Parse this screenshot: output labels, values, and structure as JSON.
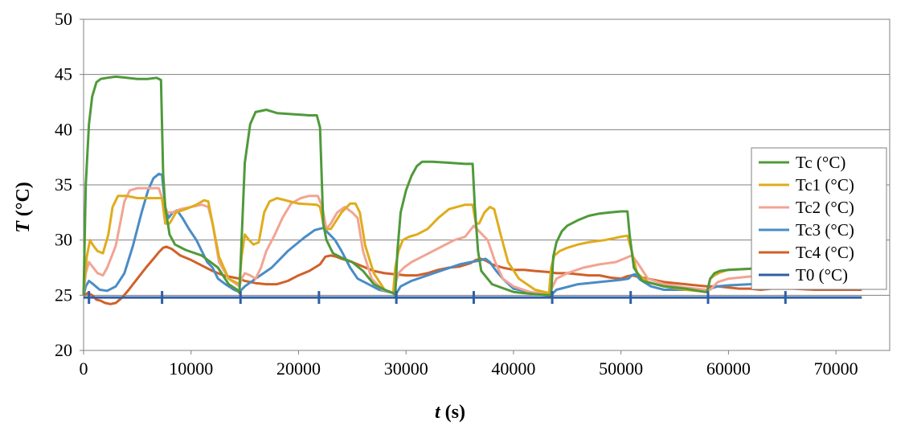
{
  "chart_data": {
    "type": "line",
    "title": "",
    "xlabel": {
      "var": "t",
      "unit": " (s)"
    },
    "ylabel": {
      "var": "T",
      "unit": " (°C)"
    },
    "xlim": [
      0,
      75000
    ],
    "ylim": [
      20,
      50
    ],
    "xticks": [
      0,
      10000,
      20000,
      30000,
      40000,
      50000,
      60000,
      70000
    ],
    "yticks": [
      20,
      25,
      30,
      35,
      40,
      45,
      50
    ],
    "grid": "horizontal",
    "legend_position": "right",
    "series": [
      {
        "name": "Tc (°C)",
        "color": "#4f9a3a",
        "x": [
          0,
          200,
          500,
          800,
          1200,
          1600,
          2200,
          3000,
          4000,
          5000,
          6000,
          6800,
          7200,
          7400,
          7600,
          8000,
          8500,
          9500,
          11000,
          12500,
          13500,
          14300,
          14500,
          14700,
          15000,
          15500,
          16000,
          17000,
          18000,
          19500,
          21000,
          21700,
          22000,
          22300,
          22600,
          23200,
          24000,
          25000,
          26000,
          27000,
          28000,
          28800,
          29000,
          29200,
          29500,
          30000,
          30500,
          31000,
          31500,
          32500,
          34000,
          35500,
          36200,
          36400,
          36700,
          37000,
          38000,
          40000,
          42000,
          43300,
          43500,
          43700,
          44000,
          44500,
          45000,
          46000,
          47000,
          48000,
          49000,
          50000,
          50600,
          50800,
          51200,
          52000,
          54000,
          56000,
          57800,
          58000,
          58300,
          58700,
          59200,
          60000,
          62000,
          64000,
          65200,
          65700,
          66500,
          68000,
          70000,
          72400
        ],
        "y": [
          25.0,
          35.0,
          40.5,
          43.0,
          44.3,
          44.6,
          44.7,
          44.8,
          44.7,
          44.6,
          44.6,
          44.7,
          44.5,
          36.0,
          33.0,
          30.5,
          29.6,
          29.1,
          28.6,
          27.5,
          26.0,
          25.5,
          25.2,
          30.0,
          37.0,
          40.5,
          41.6,
          41.8,
          41.5,
          41.4,
          41.3,
          41.3,
          40.2,
          31.5,
          30.0,
          28.8,
          28.4,
          28.0,
          27.2,
          26.0,
          25.5,
          25.2,
          25.0,
          29.0,
          32.5,
          34.5,
          35.8,
          36.7,
          37.1,
          37.1,
          37.0,
          36.9,
          36.9,
          33.0,
          29.0,
          27.2,
          26.0,
          25.3,
          25.1,
          25.0,
          25.0,
          28.5,
          29.8,
          30.8,
          31.3,
          31.8,
          32.2,
          32.4,
          32.5,
          32.6,
          32.6,
          30.5,
          27.5,
          26.3,
          25.8,
          25.6,
          25.3,
          25.3,
          26.5,
          27.0,
          27.2,
          27.3,
          27.4,
          27.4,
          27.4,
          26.2,
          26.0,
          25.9,
          25.8,
          25.7
        ]
      },
      {
        "name": "Tc1 (°C)",
        "color": "#e0ac1c",
        "x": [
          0,
          300,
          600,
          900,
          1300,
          1800,
          2300,
          2700,
          3200,
          4000,
          5000,
          6500,
          7300,
          7600,
          8000,
          8600,
          9500,
          10500,
          11200,
          11600,
          12000,
          12600,
          13500,
          14500,
          14700,
          15000,
          15400,
          15800,
          16300,
          16800,
          17300,
          18000,
          20000,
          21700,
          22000,
          22400,
          23000,
          24000,
          24800,
          25300,
          25700,
          26200,
          27000,
          28000,
          28800,
          29000,
          29300,
          29700,
          30300,
          31000,
          32000,
          33000,
          34000,
          35500,
          36200,
          36500,
          36800,
          37300,
          37800,
          38200,
          38800,
          39500,
          40500,
          42000,
          43300,
          43500,
          43800,
          44300,
          45000,
          46000,
          47000,
          48500,
          50000,
          50600,
          51000,
          51500,
          52500,
          54000,
          56000,
          58000,
          58300,
          58700,
          59300,
          60000,
          62000,
          64000,
          65200,
          65800,
          66500,
          68000,
          70000,
          72400
        ],
        "y": [
          25.5,
          28.5,
          30.0,
          29.5,
          29.0,
          28.8,
          30.5,
          33.0,
          34.0,
          34.0,
          33.8,
          33.8,
          33.8,
          31.5,
          31.5,
          32.5,
          32.8,
          33.2,
          33.6,
          33.5,
          31.5,
          28.5,
          26.5,
          26.0,
          28.5,
          30.5,
          30.0,
          29.6,
          29.8,
          32.5,
          33.5,
          33.8,
          33.3,
          33.2,
          33.0,
          31.0,
          31.0,
          32.5,
          33.3,
          33.3,
          32.5,
          29.5,
          27.0,
          25.5,
          25.2,
          27.5,
          29.0,
          30.0,
          30.3,
          30.5,
          31.0,
          32.0,
          32.8,
          33.2,
          33.2,
          31.5,
          31.5,
          32.5,
          33.0,
          32.8,
          30.5,
          28.0,
          26.5,
          25.5,
          25.2,
          27.5,
          28.6,
          29.0,
          29.3,
          29.6,
          29.8,
          30.0,
          30.3,
          30.4,
          29.0,
          27.0,
          26.2,
          25.8,
          25.5,
          25.3,
          26.5,
          26.8,
          27.1,
          27.3,
          27.4,
          27.4,
          27.4,
          26.3,
          26.1,
          26.0,
          25.9,
          25.8
        ]
      },
      {
        "name": "Tc2 (°C)",
        "color": "#f2a492",
        "x": [
          0,
          200,
          500,
          900,
          1300,
          1800,
          2200,
          2600,
          3000,
          3400,
          3800,
          4300,
          5000,
          6000,
          7000,
          7400,
          7800,
          8300,
          9000,
          10000,
          11000,
          11600,
          12000,
          12600,
          13500,
          14500,
          14700,
          15000,
          15500,
          16000,
          16500,
          17000,
          17800,
          18500,
          19300,
          20200,
          21000,
          21800,
          22200,
          22600,
          23000,
          23600,
          24300,
          25000,
          25500,
          26000,
          26800,
          27800,
          28800,
          29000,
          29300,
          29800,
          30500,
          31500,
          32500,
          33500,
          34500,
          35500,
          36300,
          37000,
          37600,
          38300,
          39000,
          40000,
          41500,
          43300,
          43500,
          44000,
          45000,
          46500,
          48000,
          49500,
          50500,
          51000,
          51500,
          52500,
          54000,
          56000,
          58000,
          58300,
          59000,
          60000,
          62000,
          64000,
          65000,
          65500,
          66500,
          68000,
          70000,
          72400
        ],
        "y": [
          25.2,
          27.0,
          28.0,
          27.5,
          27.0,
          26.8,
          27.5,
          28.5,
          29.5,
          31.5,
          33.5,
          34.5,
          34.7,
          34.7,
          34.7,
          33.5,
          32.5,
          32.5,
          32.8,
          33.0,
          33.2,
          33.0,
          31.5,
          28.0,
          26.5,
          25.8,
          26.5,
          27.0,
          26.8,
          26.5,
          27.5,
          29.0,
          30.5,
          32.0,
          33.3,
          33.8,
          34.0,
          34.0,
          33.0,
          31.0,
          31.5,
          32.5,
          33.0,
          32.5,
          32.0,
          29.0,
          26.5,
          25.5,
          25.2,
          26.0,
          27.0,
          27.5,
          28.0,
          28.5,
          29.0,
          29.5,
          30.0,
          30.3,
          31.3,
          30.6,
          30.0,
          28.0,
          26.5,
          25.8,
          25.3,
          25.1,
          25.5,
          26.5,
          27.0,
          27.5,
          27.8,
          28.0,
          28.4,
          28.6,
          28.0,
          26.5,
          26.0,
          25.7,
          25.5,
          25.5,
          26.2,
          26.5,
          26.7,
          26.8,
          26.8,
          26.8,
          26.2,
          26.0,
          25.9,
          25.8
        ]
      },
      {
        "name": "Tc3 (°C)",
        "color": "#4a8cc6",
        "x": [
          0,
          200,
          500,
          900,
          1500,
          2200,
          3000,
          3800,
          4600,
          5400,
          6000,
          6500,
          7000,
          7300,
          7600,
          7900,
          8300,
          8700,
          9200,
          9800,
          10500,
          11000,
          11500,
          12000,
          12500,
          13200,
          14000,
          14500,
          15000,
          16000,
          17500,
          19000,
          20500,
          21500,
          22300,
          22800,
          23400,
          24000,
          24800,
          25500,
          26500,
          27500,
          28800,
          29000,
          29500,
          30500,
          32000,
          33500,
          35000,
          36000,
          36600,
          37000,
          37400,
          37800,
          38400,
          39000,
          40000,
          42000,
          43300,
          43500,
          44000,
          46000,
          48000,
          50000,
          50700,
          51000,
          51300,
          51800,
          52800,
          54000,
          56000,
          58000,
          58300,
          59000,
          60000,
          62000,
          64000,
          65000,
          65500,
          66500,
          68000,
          70000,
          72400
        ],
        "y": [
          25.0,
          25.8,
          26.3,
          26.0,
          25.5,
          25.4,
          25.8,
          27.0,
          29.5,
          32.5,
          34.5,
          35.6,
          36.0,
          35.9,
          33.0,
          32.0,
          32.5,
          32.7,
          32.0,
          31.0,
          30.0,
          29.0,
          28.0,
          27.5,
          26.5,
          26.0,
          25.5,
          25.3,
          25.8,
          26.5,
          27.5,
          29.0,
          30.2,
          30.9,
          31.1,
          30.6,
          30.0,
          29.0,
          27.5,
          26.5,
          26.0,
          25.5,
          25.2,
          25.0,
          25.8,
          26.3,
          26.8,
          27.3,
          27.8,
          28.0,
          28.1,
          28.2,
          28.3,
          28.0,
          27.2,
          26.5,
          25.6,
          25.2,
          25.0,
          25.0,
          25.5,
          26.0,
          26.2,
          26.4,
          26.5,
          26.8,
          26.9,
          26.4,
          25.8,
          25.5,
          25.5,
          25.5,
          25.6,
          25.8,
          25.9,
          26.0,
          26.1,
          26.1,
          26.1,
          26.0,
          25.9,
          25.8,
          25.8
        ]
      },
      {
        "name": "Tc4 (°C)",
        "color": "#d0612a",
        "x": [
          0,
          400,
          800,
          1200,
          1600,
          2000,
          2500,
          3000,
          3600,
          4200,
          5000,
          5800,
          6500,
          7000,
          7400,
          7700,
          8200,
          9000,
          10000,
          11000,
          12000,
          13000,
          14000,
          14500,
          15000,
          16000,
          17000,
          18000,
          19000,
          20000,
          21000,
          22000,
          22500,
          23000,
          23500,
          24000,
          25000,
          26000,
          27000,
          28000,
          29000,
          30000,
          31000,
          32000,
          33000,
          34000,
          35000,
          36000,
          36500,
          37000,
          37500,
          38000,
          39000,
          40000,
          41000,
          42000,
          43300,
          44000,
          45000,
          46000,
          47000,
          48000,
          49000,
          50000,
          50500,
          51000,
          51500,
          52000,
          53000,
          54000,
          55000,
          56000,
          57000,
          58000,
          59000,
          60000,
          61000,
          62000,
          63000,
          64000,
          65000,
          66000,
          68000,
          70000,
          72400
        ],
        "y": [
          25.0,
          25.2,
          25.0,
          24.6,
          24.5,
          24.3,
          24.2,
          24.3,
          24.8,
          25.5,
          26.5,
          27.5,
          28.3,
          28.9,
          29.3,
          29.4,
          29.2,
          28.6,
          28.2,
          27.7,
          27.2,
          26.8,
          26.6,
          26.5,
          26.3,
          26.1,
          26.0,
          26.0,
          26.3,
          26.8,
          27.2,
          27.8,
          28.5,
          28.6,
          28.5,
          28.3,
          28.0,
          27.6,
          27.2,
          27.0,
          26.9,
          26.8,
          26.8,
          27.0,
          27.3,
          27.5,
          27.6,
          27.9,
          28.2,
          28.3,
          28.1,
          27.8,
          27.5,
          27.3,
          27.3,
          27.2,
          27.1,
          27.0,
          27.0,
          26.9,
          26.8,
          26.8,
          26.6,
          26.5,
          26.7,
          26.8,
          26.7,
          26.6,
          26.4,
          26.2,
          26.1,
          26.0,
          25.9,
          25.8,
          25.8,
          25.7,
          25.6,
          25.6,
          25.5,
          25.6,
          25.6,
          25.6,
          25.5,
          25.5,
          25.5
        ]
      },
      {
        "name": "T0 (°C)",
        "color": "#2f5ea6",
        "x": [
          0,
          72400
        ],
        "y": [
          24.8,
          24.8
        ],
        "spikes": [
          500,
          7300,
          14600,
          21900,
          29100,
          36300,
          43600,
          50900,
          58100,
          65300
        ]
      }
    ]
  }
}
